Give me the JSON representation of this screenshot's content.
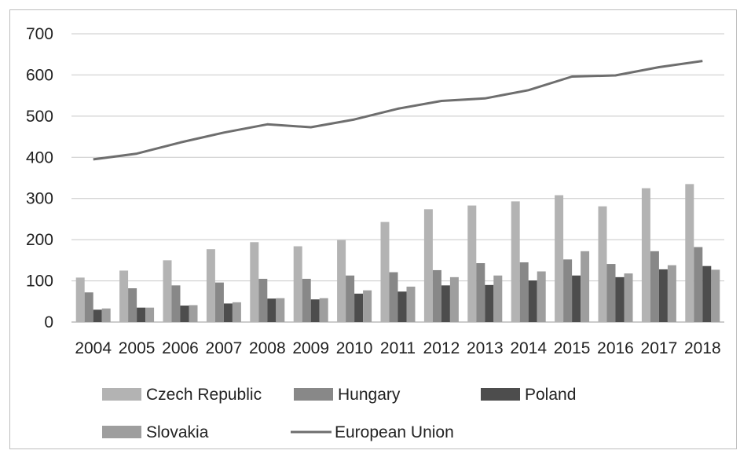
{
  "chart_data": {
    "type": "bar",
    "categories": [
      "2004",
      "2005",
      "2006",
      "2007",
      "2008",
      "2009",
      "2010",
      "2011",
      "2012",
      "2013",
      "2014",
      "2015",
      "2016",
      "2017",
      "2018"
    ],
    "series": [
      {
        "name": "Czech Republic",
        "kind": "bar",
        "color": "#b3b3b3",
        "values": [
          108,
          125,
          150,
          177,
          194,
          184,
          199,
          243,
          274,
          283,
          293,
          308,
          281,
          325,
          335
        ]
      },
      {
        "name": "Hungary",
        "kind": "bar",
        "color": "#888888",
        "values": [
          72,
          82,
          89,
          96,
          105,
          105,
          113,
          121,
          126,
          143,
          145,
          152,
          141,
          172,
          182
        ]
      },
      {
        "name": "Poland",
        "kind": "bar",
        "color": "#4d4d4d",
        "values": [
          30,
          35,
          40,
          45,
          57,
          55,
          69,
          74,
          89,
          90,
          101,
          113,
          109,
          128,
          136
        ]
      },
      {
        "name": "Slovakia",
        "kind": "bar",
        "color": "#9e9e9e",
        "values": [
          33,
          35,
          41,
          48,
          58,
          58,
          77,
          86,
          109,
          113,
          123,
          172,
          118,
          138,
          127
        ]
      },
      {
        "name": "European Union",
        "kind": "line",
        "color": "#6e6e6e",
        "values": [
          395,
          409,
          436,
          460,
          480,
          473,
          492,
          518,
          537,
          543,
          563,
          596,
          599,
          619,
          634
        ]
      }
    ],
    "yticks": [
      "0",
      "100",
      "200",
      "300",
      "400",
      "500",
      "600",
      "700"
    ],
    "ylim": [
      0,
      700
    ],
    "grid": true,
    "legend_position": "bottom"
  }
}
